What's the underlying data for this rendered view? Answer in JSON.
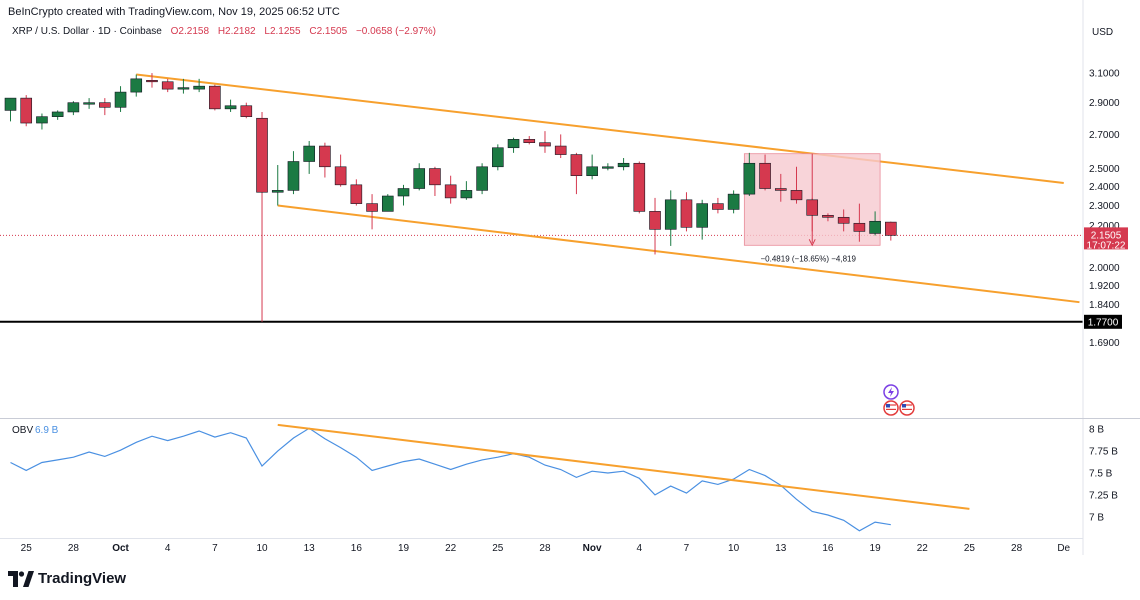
{
  "header": {
    "created_by": "BeInCrypto created with TradingView.com, Nov 19, 2025 06:52 UTC"
  },
  "symbol": {
    "name": "XRP / U.S. Dollar · 1D · Coinbase",
    "open": "O2.2158",
    "high": "H2.2182",
    "low": "L2.1255",
    "close": "C2.1505",
    "change": "−0.0658 (−2.97%)"
  },
  "currency_label": "USD",
  "colors": {
    "up": "#1b7a43",
    "down": "#d5394f",
    "trendline": "#f7a02d",
    "obv_line": "#4a90e2",
    "measure_fill": "#f6c9cf"
  },
  "price_label": {
    "value": "2.1505",
    "countdown": "17:07:22"
  },
  "support_label": "1.7700",
  "measure_label": "−0.4819 (−18.65%) −4,819",
  "obv": {
    "name": "OBV",
    "value": "6.9 B"
  },
  "footer": {
    "logo_text": "TradingView"
  },
  "chart_data": [
    {
      "type": "candlestick",
      "title": "XRP / U.S. Dollar · 1D · Coinbase",
      "ylabel": "USD",
      "y_scale": "log",
      "y_ticks": [
        "3.1000",
        "2.9000",
        "2.7000",
        "2.5000",
        "2.4000",
        "2.3000",
        "2.2000",
        "2.0000",
        "1.9200",
        "1.8400",
        "1.6900"
      ],
      "x_ticks": [
        "25",
        "28",
        "Oct",
        "4",
        "7",
        "10",
        "13",
        "16",
        "19",
        "22",
        "25",
        "28",
        "Nov",
        "4",
        "7",
        "10",
        "13",
        "16",
        "19",
        "22",
        "25",
        "28",
        "De"
      ],
      "candles": [
        {
          "date": "Sep 24",
          "o": 2.85,
          "h": 2.93,
          "l": 2.78,
          "c": 2.93
        },
        {
          "date": "Sep 25",
          "o": 2.93,
          "h": 2.95,
          "l": 2.75,
          "c": 2.77
        },
        {
          "date": "Sep 26",
          "o": 2.77,
          "h": 2.83,
          "l": 2.73,
          "c": 2.81
        },
        {
          "date": "Sep 27",
          "o": 2.81,
          "h": 2.85,
          "l": 2.79,
          "c": 2.84
        },
        {
          "date": "Sep 28",
          "o": 2.84,
          "h": 2.91,
          "l": 2.82,
          "c": 2.9
        },
        {
          "date": "Sep 29",
          "o": 2.89,
          "h": 2.93,
          "l": 2.86,
          "c": 2.9
        },
        {
          "date": "Sep 30",
          "o": 2.9,
          "h": 2.93,
          "l": 2.82,
          "c": 2.87
        },
        {
          "date": "Oct 1",
          "o": 2.87,
          "h": 3.01,
          "l": 2.84,
          "c": 2.97
        },
        {
          "date": "Oct 2",
          "o": 2.97,
          "h": 3.09,
          "l": 2.94,
          "c": 3.06
        },
        {
          "date": "Oct 3",
          "o": 3.05,
          "h": 3.1,
          "l": 3.0,
          "c": 3.04
        },
        {
          "date": "Oct 4",
          "o": 3.04,
          "h": 3.06,
          "l": 2.97,
          "c": 2.99
        },
        {
          "date": "Oct 5",
          "o": 2.99,
          "h": 3.06,
          "l": 2.96,
          "c": 3.0
        },
        {
          "date": "Oct 6",
          "o": 2.99,
          "h": 3.06,
          "l": 2.97,
          "c": 3.01
        },
        {
          "date": "Oct 7",
          "o": 3.01,
          "h": 3.02,
          "l": 2.85,
          "c": 2.86
        },
        {
          "date": "Oct 8",
          "o": 2.86,
          "h": 2.92,
          "l": 2.84,
          "c": 2.88
        },
        {
          "date": "Oct 9",
          "o": 2.88,
          "h": 2.9,
          "l": 2.8,
          "c": 2.81
        },
        {
          "date": "Oct 10",
          "o": 2.8,
          "h": 2.84,
          "l": 1.77,
          "c": 2.37
        },
        {
          "date": "Oct 11",
          "o": 2.37,
          "h": 2.52,
          "l": 2.3,
          "c": 2.38
        },
        {
          "date": "Oct 12",
          "o": 2.38,
          "h": 2.6,
          "l": 2.36,
          "c": 2.54
        },
        {
          "date": "Oct 13",
          "o": 2.54,
          "h": 2.66,
          "l": 2.47,
          "c": 2.63
        },
        {
          "date": "Oct 14",
          "o": 2.63,
          "h": 2.65,
          "l": 2.45,
          "c": 2.51
        },
        {
          "date": "Oct 15",
          "o": 2.51,
          "h": 2.58,
          "l": 2.4,
          "c": 2.41
        },
        {
          "date": "Oct 16",
          "o": 2.41,
          "h": 2.44,
          "l": 2.3,
          "c": 2.31
        },
        {
          "date": "Oct 17",
          "o": 2.31,
          "h": 2.36,
          "l": 2.18,
          "c": 2.27
        },
        {
          "date": "Oct 18",
          "o": 2.27,
          "h": 2.36,
          "l": 2.27,
          "c": 2.35
        },
        {
          "date": "Oct 19",
          "o": 2.35,
          "h": 2.41,
          "l": 2.3,
          "c": 2.39
        },
        {
          "date": "Oct 20",
          "o": 2.39,
          "h": 2.53,
          "l": 2.38,
          "c": 2.5
        },
        {
          "date": "Oct 21",
          "o": 2.5,
          "h": 2.51,
          "l": 2.35,
          "c": 2.41
        },
        {
          "date": "Oct 22",
          "o": 2.41,
          "h": 2.46,
          "l": 2.31,
          "c": 2.34
        },
        {
          "date": "Oct 23",
          "o": 2.34,
          "h": 2.43,
          "l": 2.33,
          "c": 2.38
        },
        {
          "date": "Oct 24",
          "o": 2.38,
          "h": 2.53,
          "l": 2.36,
          "c": 2.51
        },
        {
          "date": "Oct 25",
          "o": 2.51,
          "h": 2.64,
          "l": 2.49,
          "c": 2.62
        },
        {
          "date": "Oct 26",
          "o": 2.62,
          "h": 2.68,
          "l": 2.59,
          "c": 2.67
        },
        {
          "date": "Oct 27",
          "o": 2.67,
          "h": 2.69,
          "l": 2.64,
          "c": 2.65
        },
        {
          "date": "Oct 28",
          "o": 2.65,
          "h": 2.72,
          "l": 2.59,
          "c": 2.63
        },
        {
          "date": "Oct 29",
          "o": 2.63,
          "h": 2.7,
          "l": 2.56,
          "c": 2.58
        },
        {
          "date": "Oct 30",
          "o": 2.58,
          "h": 2.59,
          "l": 2.36,
          "c": 2.46
        },
        {
          "date": "Oct 31",
          "o": 2.46,
          "h": 2.58,
          "l": 2.44,
          "c": 2.51
        },
        {
          "date": "Nov 1",
          "o": 2.51,
          "h": 2.53,
          "l": 2.49,
          "c": 2.51
        },
        {
          "date": "Nov 2",
          "o": 2.51,
          "h": 2.56,
          "l": 2.49,
          "c": 2.53
        },
        {
          "date": "Nov 3",
          "o": 2.53,
          "h": 2.54,
          "l": 2.26,
          "c": 2.27
        },
        {
          "date": "Nov 4",
          "o": 2.27,
          "h": 2.34,
          "l": 2.06,
          "c": 2.18
        },
        {
          "date": "Nov 5",
          "o": 2.18,
          "h": 2.38,
          "l": 2.1,
          "c": 2.33
        },
        {
          "date": "Nov 6",
          "o": 2.33,
          "h": 2.37,
          "l": 2.17,
          "c": 2.19
        },
        {
          "date": "Nov 7",
          "o": 2.19,
          "h": 2.33,
          "l": 2.13,
          "c": 2.31
        },
        {
          "date": "Nov 8",
          "o": 2.31,
          "h": 2.34,
          "l": 2.26,
          "c": 2.28
        },
        {
          "date": "Nov 9",
          "o": 2.28,
          "h": 2.38,
          "l": 2.26,
          "c": 2.36
        },
        {
          "date": "Nov 10",
          "o": 2.36,
          "h": 2.59,
          "l": 2.35,
          "c": 2.53
        },
        {
          "date": "Nov 11",
          "o": 2.53,
          "h": 2.58,
          "l": 2.38,
          "c": 2.39
        },
        {
          "date": "Nov 12",
          "o": 2.39,
          "h": 2.47,
          "l": 2.32,
          "c": 2.38
        },
        {
          "date": "Nov 13",
          "o": 2.38,
          "h": 2.51,
          "l": 2.31,
          "c": 2.33
        },
        {
          "date": "Nov 14",
          "o": 2.33,
          "h": 2.34,
          "l": 2.17,
          "c": 2.25
        },
        {
          "date": "Nov 15",
          "o": 2.25,
          "h": 2.26,
          "l": 2.22,
          "c": 2.24
        },
        {
          "date": "Nov 16",
          "o": 2.24,
          "h": 2.28,
          "l": 2.17,
          "c": 2.21
        },
        {
          "date": "Nov 17",
          "o": 2.21,
          "h": 2.31,
          "l": 2.12,
          "c": 2.17
        },
        {
          "date": "Nov 18",
          "o": 2.16,
          "h": 2.27,
          "l": 2.15,
          "c": 2.22
        },
        {
          "date": "Nov 19",
          "o": 2.2158,
          "h": 2.2182,
          "l": 2.1255,
          "c": 2.1505
        }
      ],
      "trendlines": [
        {
          "from": {
            "date": "Oct 2",
            "price": 3.09
          },
          "to": {
            "date": "Nov 30",
            "price": 2.42
          }
        },
        {
          "from": {
            "date": "Oct 11",
            "price": 2.3
          },
          "to": {
            "date": "Dec 1",
            "price": 1.85
          }
        }
      ],
      "support_level": 1.77,
      "current_price": 2.1505,
      "measure": {
        "from_date": "Nov 10",
        "to_date": "Nov 18",
        "from_price": 2.585,
        "to_price": 2.103
      }
    },
    {
      "type": "line",
      "title": "OBV",
      "ylabel": "",
      "y_ticks": [
        "8 B",
        "7.75 B",
        "7.5 B",
        "7.25 B",
        "7 B"
      ],
      "ylim": [
        6.8,
        8.05
      ],
      "series": [
        {
          "name": "OBV",
          "points": [
            [
              "Sep 24",
              7.62
            ],
            [
              "Sep 25",
              7.53
            ],
            [
              "Sep 26",
              7.62
            ],
            [
              "Sep 27",
              7.65
            ],
            [
              "Sep 28",
              7.68
            ],
            [
              "Sep 29",
              7.74
            ],
            [
              "Sep 30",
              7.69
            ],
            [
              "Oct 1",
              7.76
            ],
            [
              "Oct 2",
              7.85
            ],
            [
              "Oct 3",
              7.92
            ],
            [
              "Oct 4",
              7.87
            ],
            [
              "Oct 5",
              7.92
            ],
            [
              "Oct 6",
              7.98
            ],
            [
              "Oct 7",
              7.91
            ],
            [
              "Oct 8",
              7.96
            ],
            [
              "Oct 9",
              7.9
            ],
            [
              "Oct 10",
              7.58
            ],
            [
              "Oct 11",
              7.75
            ],
            [
              "Oct 12",
              7.9
            ],
            [
              "Oct 13",
              8.01
            ],
            [
              "Oct 14",
              7.89
            ],
            [
              "Oct 15",
              7.79
            ],
            [
              "Oct 16",
              7.68
            ],
            [
              "Oct 17",
              7.53
            ],
            [
              "Oct 18",
              7.58
            ],
            [
              "Oct 19",
              7.63
            ],
            [
              "Oct 20",
              7.66
            ],
            [
              "Oct 21",
              7.6
            ],
            [
              "Oct 22",
              7.54
            ],
            [
              "Oct 23",
              7.6
            ],
            [
              "Oct 24",
              7.65
            ],
            [
              "Oct 25",
              7.68
            ],
            [
              "Oct 26",
              7.72
            ],
            [
              "Oct 27",
              7.68
            ],
            [
              "Oct 28",
              7.59
            ],
            [
              "Oct 29",
              7.54
            ],
            [
              "Oct 30",
              7.45
            ],
            [
              "Oct 31",
              7.52
            ],
            [
              "Nov 1",
              7.5
            ],
            [
              "Nov 2",
              7.52
            ],
            [
              "Nov 3",
              7.44
            ],
            [
              "Nov 4",
              7.25
            ],
            [
              "Nov 5",
              7.35
            ],
            [
              "Nov 6",
              7.27
            ],
            [
              "Nov 7",
              7.41
            ],
            [
              "Nov 8",
              7.37
            ],
            [
              "Nov 9",
              7.43
            ],
            [
              "Nov 10",
              7.54
            ],
            [
              "Nov 11",
              7.47
            ],
            [
              "Nov 12",
              7.36
            ],
            [
              "Nov 13",
              7.2
            ],
            [
              "Nov 14",
              7.06
            ],
            [
              "Nov 15",
              7.02
            ],
            [
              "Nov 16",
              6.96
            ],
            [
              "Nov 17",
              6.84
            ],
            [
              "Nov 18",
              6.94
            ],
            [
              "Nov 19",
              6.91
            ]
          ]
        }
      ],
      "trendline": {
        "from": {
          "date": "Oct 11",
          "value": 8.05
        },
        "to": {
          "date": "Nov 24",
          "value": 7.09
        }
      }
    }
  ]
}
